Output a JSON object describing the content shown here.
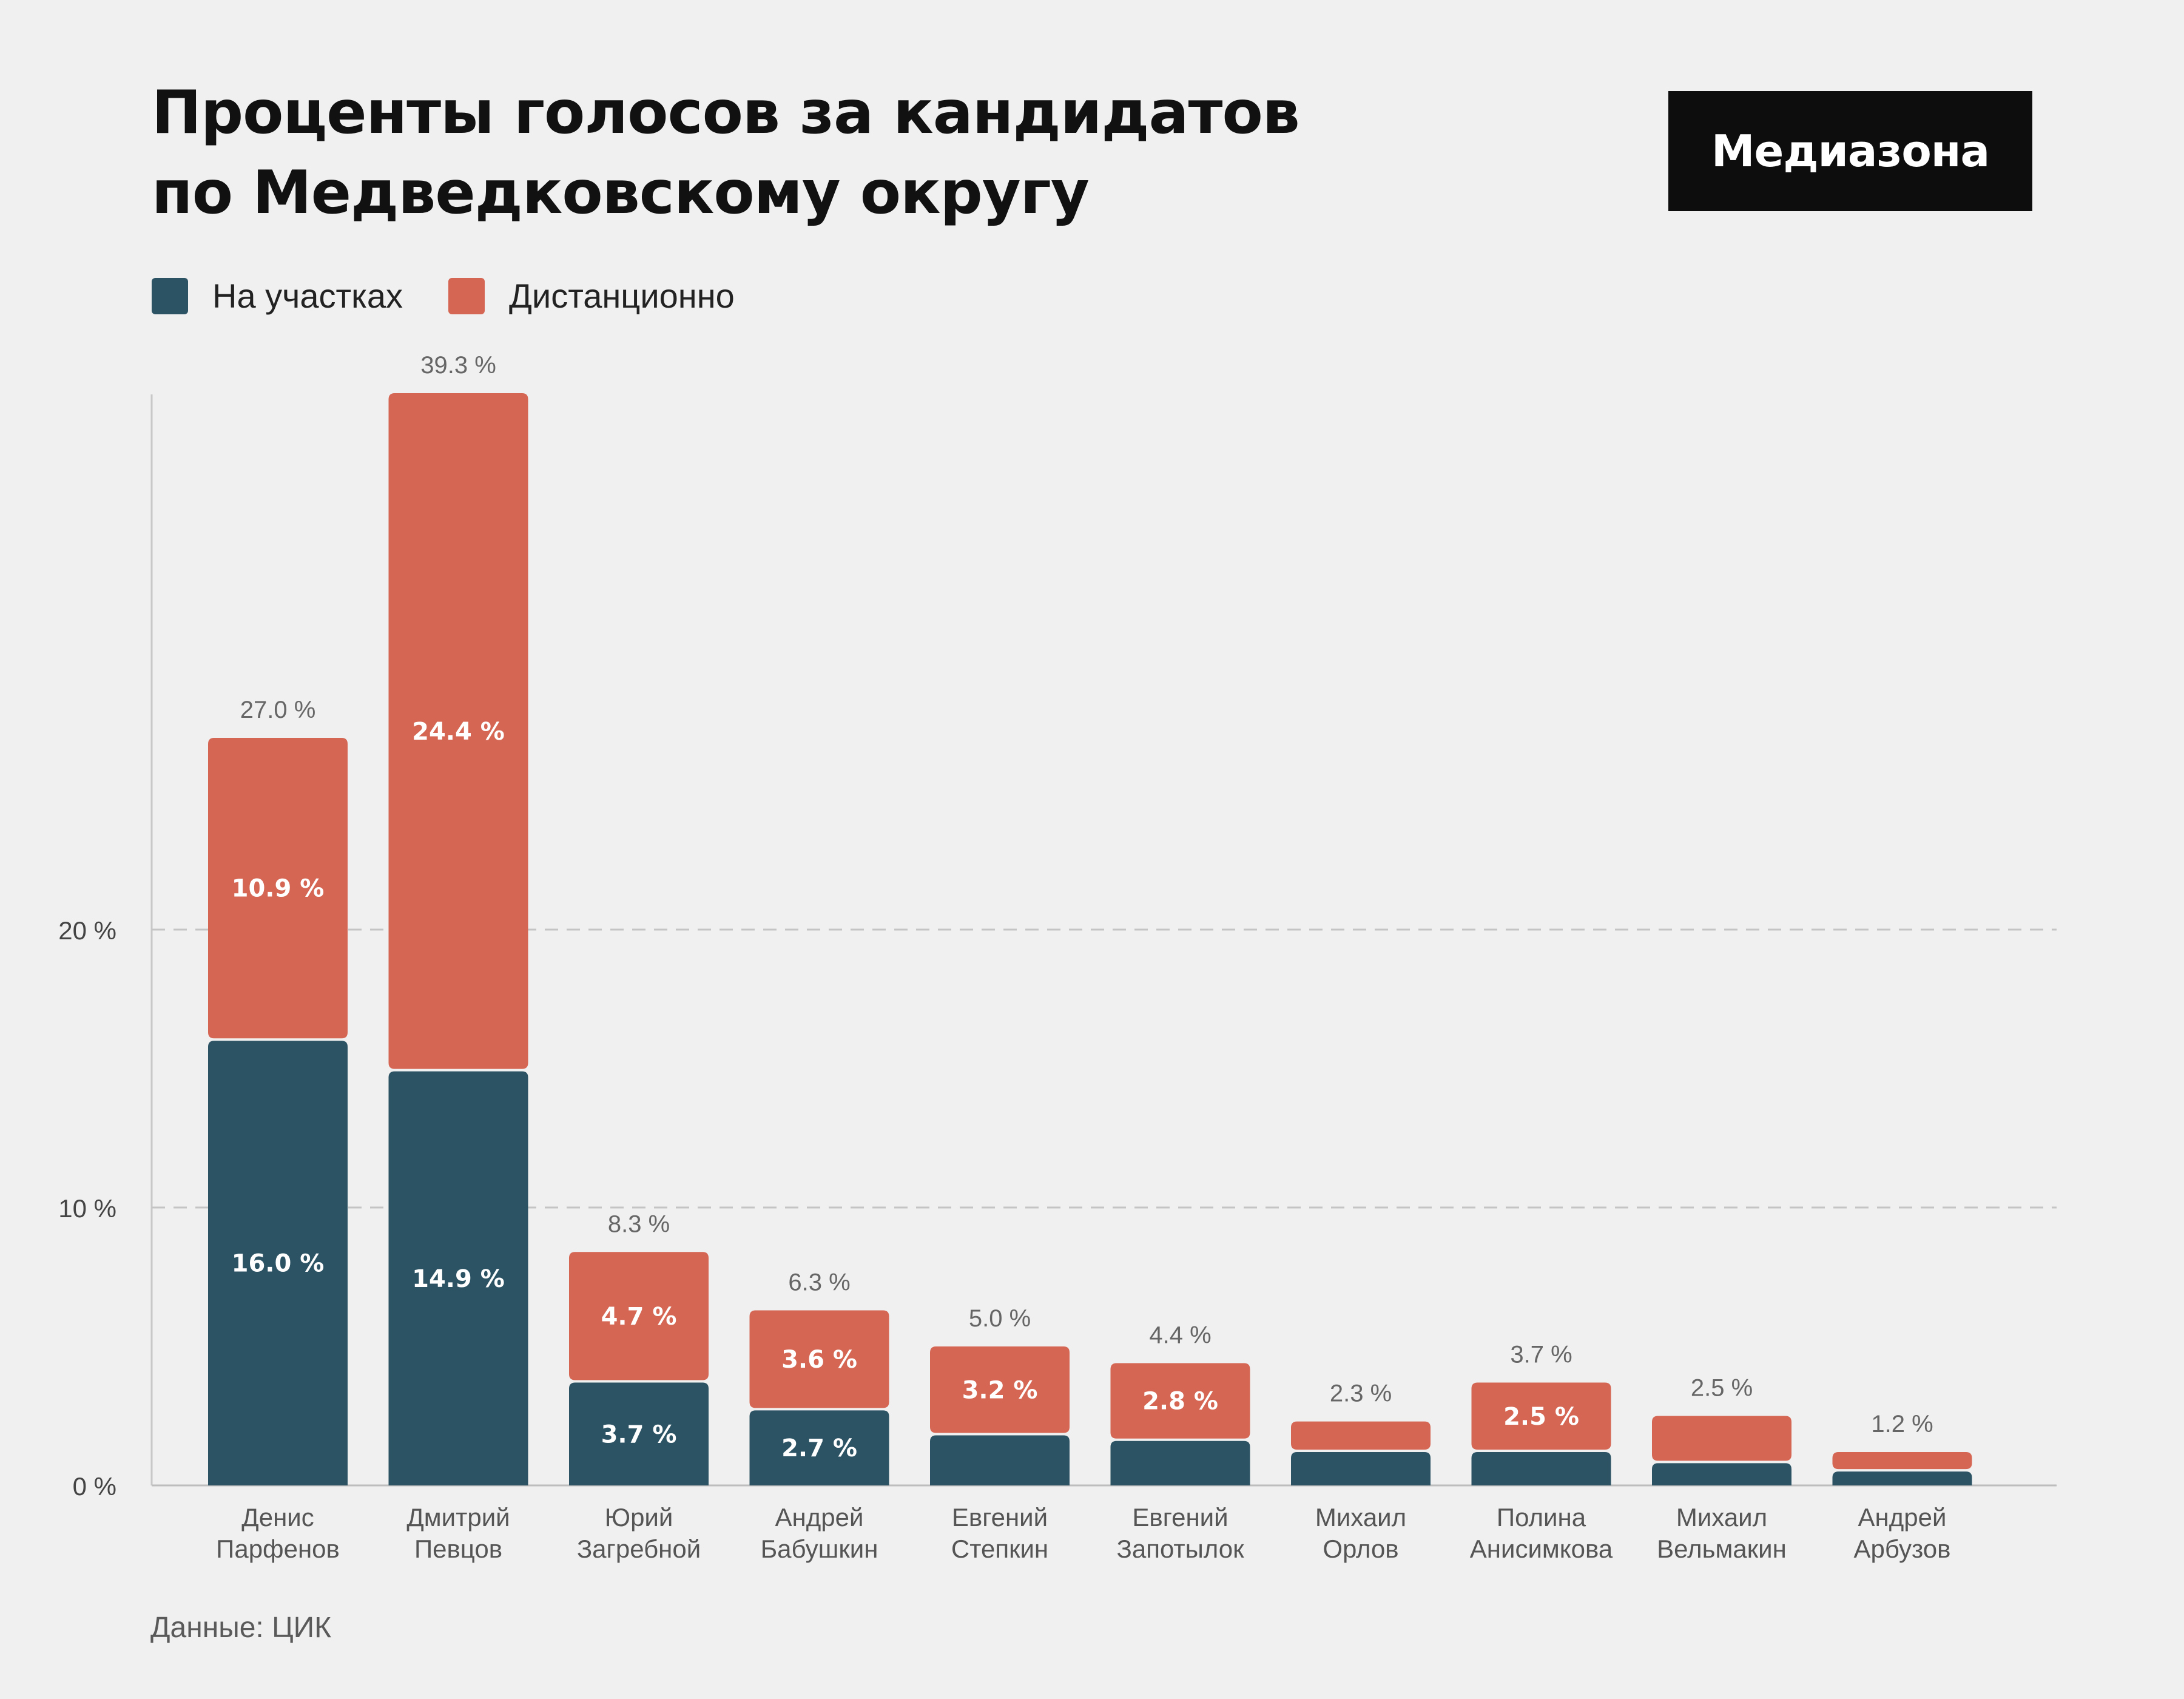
{
  "title_lines": [
    "Проценты голосов за кандидатов",
    "по Медведковскому округу"
  ],
  "logo": "Медиазона",
  "source": "Данные: ЦИК",
  "colors": {
    "on_site": "#2c5364",
    "remote": "#d56653",
    "background": "#f0f0f0",
    "axis_text": "#444444",
    "total_label": "#666666"
  },
  "chart_data": {
    "type": "bar",
    "stacked": true,
    "categories": [
      [
        "Денис",
        "Парфенов"
      ],
      [
        "Дмитрий",
        "Певцов"
      ],
      [
        "Юрий",
        "Загребной"
      ],
      [
        "Андрей",
        "Бабушкин"
      ],
      [
        "Евгений",
        "Степкин"
      ],
      [
        "Евгений",
        "Запотылок"
      ],
      [
        "Михаил",
        "Орлов"
      ],
      [
        "Полина",
        "Анисимкова"
      ],
      [
        "Михаил",
        "Вельмакин"
      ],
      [
        "Андрей",
        "Арбузов"
      ]
    ],
    "series": [
      {
        "name": "На участках",
        "color": "#2c5364",
        "values": [
          16.0,
          14.9,
          3.7,
          2.7,
          1.8,
          1.6,
          1.2,
          1.2,
          0.8,
          0.5
        ],
        "labels": [
          "16.0 %",
          "14.9 %",
          "3.7 %",
          "2.7 %",
          "",
          "",
          "",
          "",
          "",
          ""
        ]
      },
      {
        "name": "Дистанционно",
        "color": "#d56653",
        "values": [
          10.9,
          24.4,
          4.7,
          3.6,
          3.2,
          2.8,
          1.1,
          2.5,
          1.7,
          0.7
        ],
        "labels": [
          "10.9 %",
          "24.4 %",
          "4.7 %",
          "3.6 %",
          "3.2 %",
          "2.8 %",
          "",
          "2.5 %",
          "",
          ""
        ]
      }
    ],
    "totals": [
      "27.0 %",
      "39.3 %",
      "8.3 %",
      "6.3 %",
      "5.0 %",
      "4.4 %",
      "2.3 %",
      "3.7 %",
      "2.5 %",
      "1.2 %"
    ],
    "yticks": [
      {
        "value": 0,
        "label": "0 %"
      },
      {
        "value": 10,
        "label": "10 %"
      },
      {
        "value": 20,
        "label": "20 %"
      }
    ],
    "ylim": [
      0,
      40
    ],
    "grid": "dashed horizontal",
    "legend": "top-left"
  }
}
